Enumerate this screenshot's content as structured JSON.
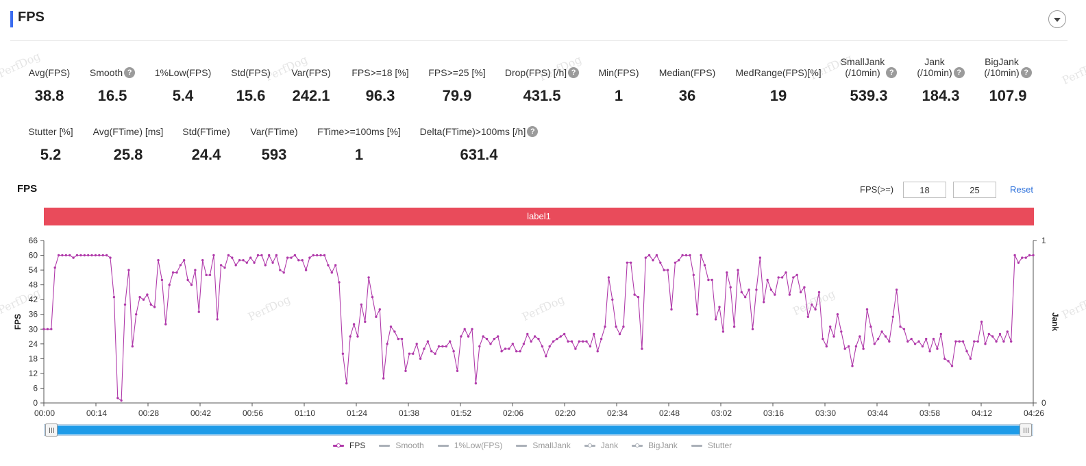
{
  "header": {
    "title": "FPS"
  },
  "metrics_row1": [
    {
      "label": "Avg(FPS)",
      "value": "38.8",
      "help": false
    },
    {
      "label": "Smooth",
      "value": "16.5",
      "help": true
    },
    {
      "label": "1%Low(FPS)",
      "value": "5.4",
      "help": false
    },
    {
      "label": "Std(FPS)",
      "value": "15.6",
      "help": false
    },
    {
      "label": "Var(FPS)",
      "value": "242.1",
      "help": false
    },
    {
      "label": "FPS>=18 [%]",
      "value": "96.3",
      "help": false
    },
    {
      "label": "FPS>=25 [%]",
      "value": "79.9",
      "help": false
    },
    {
      "label": "Drop(FPS) [/h]",
      "value": "431.5",
      "help": true
    },
    {
      "label": "Min(FPS)",
      "value": "1",
      "help": false
    },
    {
      "label": "Median(FPS)",
      "value": "36",
      "help": false
    },
    {
      "label": "MedRange(FPS)[%]",
      "value": "19",
      "help": false
    },
    {
      "label": "SmallJank\n(/10min)",
      "value": "539.3",
      "help": true
    },
    {
      "label": "Jank\n(/10min)",
      "value": "184.3",
      "help": true
    },
    {
      "label": "BigJank\n(/10min)",
      "value": "107.9",
      "help": true
    }
  ],
  "metrics_row2": [
    {
      "label": "Stutter [%]",
      "value": "5.2",
      "help": false
    },
    {
      "label": "Avg(FTime) [ms]",
      "value": "25.8",
      "help": false
    },
    {
      "label": "Std(FTime)",
      "value": "24.4",
      "help": false
    },
    {
      "label": "Var(FTime)",
      "value": "593",
      "help": false
    },
    {
      "label": "FTime>=100ms [%]",
      "value": "1",
      "help": false
    },
    {
      "label": "Delta(FTime)>100ms [/h]",
      "value": "631.4",
      "help": true
    }
  ],
  "watermark_text": "PerfDog",
  "chart_controls": {
    "title": "FPS",
    "threshold_label": "FPS(>=)",
    "threshold_1": "18",
    "threshold_2": "25",
    "reset_label": "Reset"
  },
  "label_band": "label1",
  "colors": {
    "fps_series": "#b03aaa",
    "label_band": "#e94b5b",
    "slider": "#1e9be8",
    "accent": "#3a6cf0",
    "legend_inactive": "#aab0b8"
  },
  "legend": [
    {
      "name": "FPS",
      "active": true,
      "marker": true
    },
    {
      "name": "Smooth",
      "active": false,
      "marker": false
    },
    {
      "name": "1%Low(FPS)",
      "active": false,
      "marker": false
    },
    {
      "name": "SmallJank",
      "active": false,
      "marker": false
    },
    {
      "name": "Jank",
      "active": false,
      "marker": true
    },
    {
      "name": "BigJank",
      "active": false,
      "marker": true
    },
    {
      "name": "Stutter",
      "active": false,
      "marker": false
    }
  ],
  "chart_data": {
    "type": "line",
    "ylabel": "FPS",
    "y2label": "Jank",
    "ylim": [
      0,
      66
    ],
    "yticks": [
      0,
      6,
      12,
      18,
      24,
      30,
      36,
      42,
      48,
      54,
      60,
      66
    ],
    "y2ticks": [
      "0",
      "1"
    ],
    "xticks": [
      "00:00",
      "00:14",
      "00:28",
      "00:42",
      "00:56",
      "01:10",
      "01:24",
      "01:38",
      "01:52",
      "02:06",
      "02:20",
      "02:34",
      "02:48",
      "03:02",
      "03:16",
      "03:30",
      "03:44",
      "03:58",
      "04:12",
      "04:26"
    ],
    "x_range_seconds": [
      0,
      266
    ],
    "grid": false,
    "series": [
      {
        "name": "FPS",
        "values": [
          30,
          30,
          30,
          55,
          60,
          60,
          60,
          60,
          59,
          60,
          60,
          60,
          60,
          60,
          60,
          60,
          60,
          60,
          59,
          43,
          2,
          1,
          40,
          54,
          23,
          36,
          43,
          42,
          44,
          40,
          39,
          58,
          50,
          32,
          48,
          53,
          53,
          56,
          58,
          50,
          48,
          54,
          37,
          58,
          52,
          52,
          60,
          34,
          56,
          55,
          60,
          59,
          56,
          58,
          58,
          57,
          59,
          57,
          60,
          60,
          56,
          60,
          57,
          60,
          54,
          53,
          59,
          59,
          60,
          58,
          58,
          54,
          59,
          60,
          60,
          60,
          60,
          56,
          53,
          56,
          49,
          20,
          8,
          27,
          32,
          27,
          40,
          33,
          51,
          43,
          35,
          38,
          10,
          24,
          31,
          29,
          26,
          26,
          13,
          20,
          20,
          24,
          18,
          22,
          25,
          21,
          20,
          23,
          23,
          23,
          25,
          21,
          13,
          27,
          30,
          27,
          30,
          8,
          23,
          27,
          26,
          24,
          26,
          27,
          21,
          22,
          22,
          24,
          21,
          21,
          24,
          28,
          25,
          27,
          26,
          23,
          19,
          23,
          25,
          26,
          27,
          28,
          25,
          25,
          22,
          25,
          25,
          25,
          23,
          28,
          21,
          26,
          31,
          51,
          42,
          31,
          28,
          31,
          57,
          57,
          44,
          43,
          22,
          59,
          60,
          58,
          60,
          57,
          54,
          54,
          38,
          57,
          58,
          60,
          60,
          60,
          52,
          36,
          60,
          56,
          50,
          50,
          34,
          39,
          29,
          53,
          47,
          31,
          54,
          45,
          43,
          46,
          30,
          46,
          59,
          41,
          50,
          46,
          44,
          51,
          51,
          53,
          44,
          51,
          52,
          45,
          47,
          35,
          40,
          38,
          45,
          26,
          23,
          31,
          27,
          36,
          29,
          22,
          23,
          15,
          23,
          27,
          22,
          38,
          31,
          24,
          26,
          29,
          27,
          25,
          35,
          46,
          31,
          30,
          25,
          26,
          24,
          25,
          23,
          26,
          21,
          26,
          22,
          28,
          18,
          17,
          15,
          25,
          25,
          25,
          21,
          18,
          25,
          25,
          33,
          24,
          28,
          27,
          25,
          28,
          25,
          29,
          25,
          60,
          57,
          59,
          59,
          60,
          60
        ]
      }
    ]
  }
}
